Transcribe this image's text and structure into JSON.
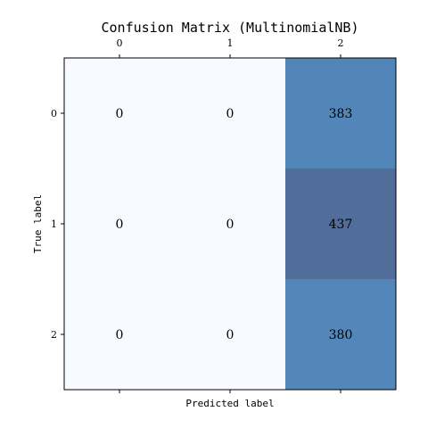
{
  "chart_data": {
    "type": "heatmap",
    "title": "Confusion Matrix (MultinomialNB)",
    "xlabel": "Predicted label",
    "ylabel": "True label",
    "x_categories": [
      "0",
      "1",
      "2"
    ],
    "y_categories": [
      "0",
      "1",
      "2"
    ],
    "values": [
      [
        0,
        0,
        383
      ],
      [
        0,
        0,
        437
      ],
      [
        0,
        0,
        380
      ]
    ],
    "colormap": "Blues",
    "x_tick_position": "top",
    "grid": false,
    "colors": {
      "low": "#f7fbff",
      "mid": "#5286b9",
      "high": "#506e99",
      "text": "#000000"
    }
  }
}
